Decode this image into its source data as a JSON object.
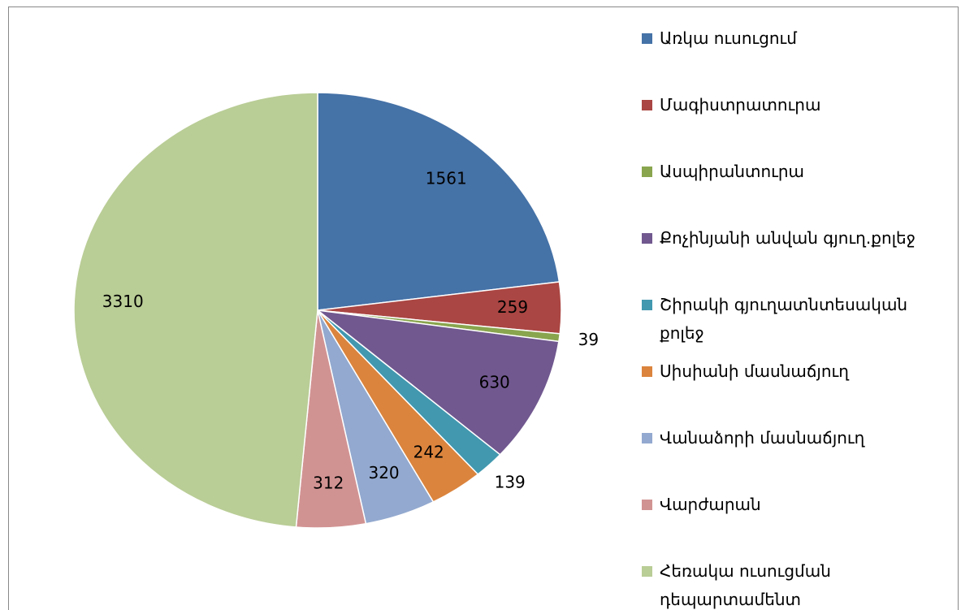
{
  "chart_data": {
    "type": "pie",
    "categories": [
      "Առկա ուսուցում",
      "Մագիստրատուրա",
      "Ասպիրանտուրա",
      "Քոչինյանի անվան գյուղ.քոլեջ",
      "Շիրակի գյուղատնտեսական քոլեջ",
      "Սիսիանի մասնաճյուղ",
      "Վանաձորի մասնաճյուղ",
      "Վարժարան",
      "Հեռակա ուսուցման դեպարտամենտ"
    ],
    "values": [
      1561,
      259,
      39,
      630,
      139,
      242,
      320,
      312,
      3310
    ],
    "colors": [
      "#4572a7",
      "#aa4643",
      "#89a54e",
      "#71588f",
      "#4198af",
      "#db843d",
      "#93a9cf",
      "#d19392",
      "#b9cd96"
    ],
    "legend": "right"
  }
}
